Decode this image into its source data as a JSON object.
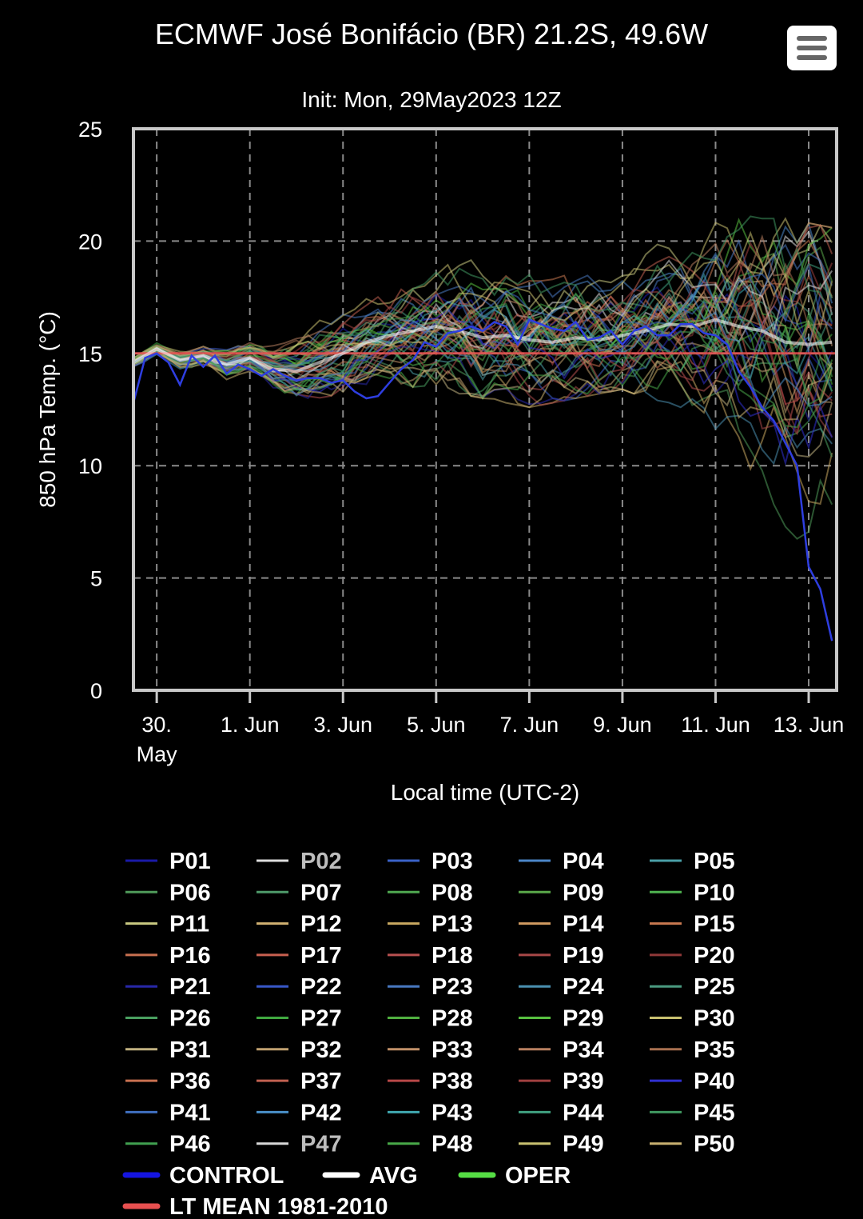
{
  "title": "ECMWF José Bonifácio (BR) 21.2S, 49.6W",
  "subtitle": "Init: Mon, 29May2023 12Z",
  "menu_icon": "hamburger-menu-icon",
  "colors": {
    "background": "#000000",
    "control": "#1515e0",
    "avg": "#ffffff",
    "oper": "#55dd44",
    "lt_mean": "#e85050",
    "grid": "#888888",
    "frame": "#c8c8c8"
  },
  "chart_data": {
    "type": "line",
    "title": "ECMWF José Bonifácio (BR) 21.2S, 49.6W",
    "subtitle": "Init: Mon, 29May2023 12Z",
    "xlabel": "Local time (UTC-2)",
    "ylabel": "850 hPa Temp. (°C)",
    "ylim": [
      0,
      25
    ],
    "yticks": [
      0,
      5,
      10,
      15,
      20,
      25
    ],
    "xlim_days": [
      0.5,
      15.6
    ],
    "x_start": "29 May 2023",
    "xtick_labels": [
      {
        "day": 1,
        "label": [
          "30.",
          "May"
        ]
      },
      {
        "day": 3,
        "label": [
          "1. Jun"
        ]
      },
      {
        "day": 5,
        "label": [
          "3. Jun"
        ]
      },
      {
        "day": 7,
        "label": [
          "5. Jun"
        ]
      },
      {
        "day": 9,
        "label": [
          "7. Jun"
        ]
      },
      {
        "day": 11,
        "label": [
          "9. Jun"
        ]
      },
      {
        "day": 13,
        "label": [
          "11. Jun"
        ]
      },
      {
        "day": 15,
        "label": [
          "13. Jun"
        ]
      }
    ],
    "grid": true,
    "legend_position": "bottom",
    "control": {
      "name": "CONTROL",
      "x": [
        0.5,
        0.75,
        1.0,
        1.25,
        1.5,
        1.75,
        2.0,
        2.25,
        2.5,
        2.75,
        3.0,
        3.25,
        3.5,
        3.75,
        4.0,
        4.25,
        4.5,
        4.75,
        5.0,
        5.25,
        5.5,
        5.75,
        6.0,
        6.25,
        6.5,
        6.75,
        7.0,
        7.25,
        7.5,
        7.75,
        8.0,
        8.25,
        8.5,
        8.75,
        9.0,
        9.25,
        9.5,
        9.75,
        10.0,
        10.25,
        10.5,
        10.75,
        11.0,
        11.25,
        11.5,
        11.75,
        12.0,
        12.25,
        12.5,
        12.75,
        13.0,
        13.25,
        13.5,
        13.75,
        14.0,
        14.25,
        14.5,
        14.75,
        15.0,
        15.25,
        15.5
      ],
      "values": [
        12.8,
        14.8,
        15.0,
        14.6,
        13.6,
        14.9,
        14.4,
        14.9,
        14.1,
        14.5,
        14.3,
        14.0,
        14.3,
        14.0,
        13.8,
        13.9,
        13.9,
        13.7,
        13.8,
        13.3,
        13.0,
        13.1,
        13.7,
        14.3,
        14.7,
        15.5,
        15.3,
        15.9,
        16.0,
        16.2,
        16.0,
        16.4,
        16.2,
        15.4,
        16.5,
        16.3,
        16.1,
        16.0,
        16.4,
        15.6,
        15.7,
        16.0,
        15.4,
        16.0,
        16.2,
        15.8,
        15.8,
        16.3,
        16.3,
        15.9,
        15.8,
        15.4,
        14.2,
        13.5,
        12.6,
        12.0,
        11.0,
        10.0,
        5.5,
        4.5,
        2.2
      ]
    },
    "avg": {
      "name": "AVG",
      "x": [
        0.5,
        1.0,
        1.5,
        2.0,
        2.5,
        3.0,
        3.5,
        4.0,
        4.5,
        5.0,
        5.5,
        6.0,
        6.5,
        7.0,
        7.5,
        8.0,
        8.5,
        9.0,
        9.5,
        10.0,
        10.5,
        11.0,
        11.5,
        12.0,
        12.5,
        13.0,
        13.5,
        14.0,
        14.5,
        15.0,
        15.5
      ],
      "values": [
        14.6,
        15.2,
        14.7,
        14.9,
        14.5,
        14.8,
        14.3,
        14.2,
        14.6,
        15.0,
        15.5,
        15.8,
        16.0,
        16.2,
        16.0,
        15.7,
        15.8,
        15.6,
        15.5,
        15.7,
        15.6,
        15.8,
        16.0,
        16.3,
        16.2,
        16.5,
        16.2,
        16.0,
        15.5,
        15.4,
        15.5
      ]
    },
    "lt_mean": {
      "name": "LT MEAN 1981-2010",
      "value": 15.0
    },
    "oper": {
      "name": "OPER"
    },
    "members": [
      "P01",
      "P02",
      "P03",
      "P04",
      "P05",
      "P06",
      "P07",
      "P08",
      "P09",
      "P10",
      "P11",
      "P12",
      "P13",
      "P14",
      "P15",
      "P16",
      "P17",
      "P18",
      "P19",
      "P20",
      "P21",
      "P22",
      "P23",
      "P24",
      "P25",
      "P26",
      "P27",
      "P28",
      "P29",
      "P30",
      "P31",
      "P32",
      "P33",
      "P34",
      "P35",
      "P36",
      "P37",
      "P38",
      "P39",
      "P40",
      "P41",
      "P42",
      "P43",
      "P44",
      "P45",
      "P46",
      "P47",
      "P48",
      "P49",
      "P50"
    ],
    "member_colors": [
      "#1a1aa8",
      "#dddddd",
      "#3a62c8",
      "#4b86c8",
      "#4aa0a8",
      "#4f9a5a",
      "#4e9a6a",
      "#4fa850",
      "#5aa84a",
      "#4fb250",
      "#c8c880",
      "#d0b070",
      "#c8a860",
      "#d09a60",
      "#c87850",
      "#c87050",
      "#c86050",
      "#b85050",
      "#a84848",
      "#903838",
      "#2828a8",
      "#3858c8",
      "#4878c0",
      "#4a90b0",
      "#4a9a80",
      "#4aa060",
      "#40a840",
      "#50b040",
      "#58c040",
      "#c8c070",
      "#c0b080",
      "#c0a070",
      "#c09068",
      "#b88060",
      "#a87050",
      "#c87050",
      "#c06050",
      "#b84848",
      "#a04040",
      "#3030d0",
      "#4070c0",
      "#4a90c8",
      "#40a8b0",
      "#40a080",
      "#409860",
      "#40a050",
      "#d8d8d8",
      "#48a848",
      "#c8c070",
      "#c8b070"
    ],
    "dim_members": [
      "P02",
      "P47"
    ],
    "member_envelope": {
      "x": [
        0.5,
        1,
        1.5,
        2,
        2.5,
        3,
        3.5,
        4,
        4.5,
        5,
        5.5,
        6,
        6.5,
        7,
        7.5,
        8,
        8.5,
        9,
        9.5,
        10,
        10.5,
        11,
        11.5,
        12,
        12.5,
        13,
        13.5,
        14,
        14.5,
        15,
        15.5
      ],
      "low": [
        13.5,
        14.2,
        13.8,
        14.0,
        13.2,
        13.6,
        13.0,
        12.5,
        12.8,
        13.2,
        13.6,
        13.8,
        13.5,
        13.6,
        13.2,
        13.0,
        12.8,
        12.6,
        12.8,
        13.0,
        13.2,
        13.4,
        13.0,
        12.8,
        12.4,
        11.0,
        9.0,
        7.0,
        6.0,
        6.5,
        6.0
      ],
      "high": [
        15.8,
        16.0,
        15.8,
        15.8,
        15.8,
        15.9,
        15.8,
        16.2,
        16.8,
        17.4,
        17.6,
        18.0,
        19.0,
        19.6,
        20.0,
        20.2,
        19.6,
        19.0,
        19.4,
        19.6,
        19.8,
        19.5,
        19.7,
        20.0,
        20.5,
        21.0,
        21.2,
        21.0,
        21.0,
        20.8,
        20.6
      ]
    }
  },
  "legend": {
    "members": [
      "P01",
      "P02",
      "P03",
      "P04",
      "P05",
      "P06",
      "P07",
      "P08",
      "P09",
      "P10",
      "P11",
      "P12",
      "P13",
      "P14",
      "P15",
      "P16",
      "P17",
      "P18",
      "P19",
      "P20",
      "P21",
      "P22",
      "P23",
      "P24",
      "P25",
      "P26",
      "P27",
      "P28",
      "P29",
      "P30",
      "P31",
      "P32",
      "P33",
      "P34",
      "P35",
      "P36",
      "P37",
      "P38",
      "P39",
      "P40",
      "P41",
      "P42",
      "P43",
      "P44",
      "P45",
      "P46",
      "P47",
      "P48",
      "P49",
      "P50"
    ],
    "specials": [
      {
        "label": "CONTROL",
        "color": "#1515e0"
      },
      {
        "label": "AVG",
        "color": "#ffffff"
      },
      {
        "label": "OPER",
        "color": "#55dd44"
      },
      {
        "label": "LT MEAN 1981-2010",
        "color": "#e85050"
      }
    ]
  }
}
